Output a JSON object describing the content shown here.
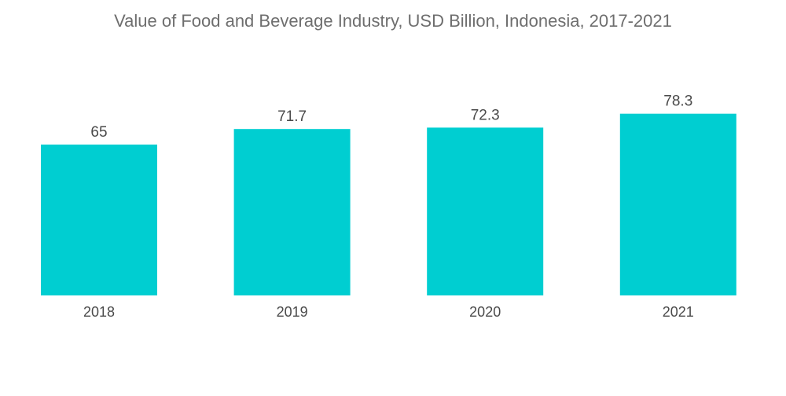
{
  "chart_data": {
    "type": "bar",
    "title": "Value of Food and Beverage Industry, USD Billion, Indonesia, 2017-2021",
    "categories": [
      "2018",
      "2019",
      "2020",
      "2021"
    ],
    "values": [
      65,
      71.7,
      72.3,
      78.3
    ],
    "value_labels": [
      "65",
      "71.7",
      "72.3",
      "78.3"
    ],
    "xlabel": "",
    "ylabel": "",
    "ylim": [
      0,
      80
    ],
    "grid": false,
    "legend": "none",
    "colors": {
      "bar": "#00CED1",
      "text": "#4a4a4a",
      "title": "#6e6e6e",
      "background": "#ffffff"
    }
  }
}
